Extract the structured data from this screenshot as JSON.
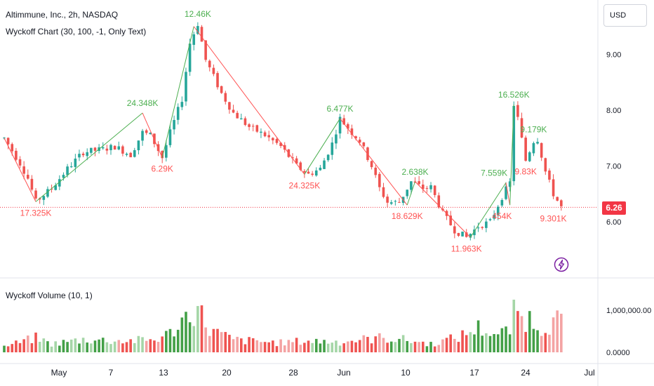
{
  "header": {
    "title": "Altimmune, Inc., 2h, NASDAQ",
    "indicator": "Wyckoff Chart (30, 100, -1, Only Text)",
    "volume_indicator": "Wyckoff Volume (10, 1)"
  },
  "currency_button": "USD",
  "last_price": "6.26",
  "colors": {
    "up": "#26a69a",
    "up_bar": "#43a047",
    "down": "#ef5350",
    "last_price_bg": "#f23645",
    "wave_up": "#4caf50",
    "wave_down": "#ff5252"
  },
  "icons": {
    "alert": "lightning-bolt-icon"
  },
  "chart_data": [
    {
      "type": "candlestick",
      "title": "Altimmune, Inc., 2h, NASDAQ",
      "y_ticks": [
        "9.00",
        "8.00",
        "7.00",
        "6.00"
      ],
      "x_ticks": [
        "May",
        "7",
        "13",
        "20",
        "28",
        "Jun",
        "10",
        "17",
        "24",
        "Jul"
      ],
      "ylim": [
        5.1,
        9.9
      ],
      "last_price": 6.26,
      "price_path": [
        {
          "t": 0,
          "v": 7.5
        },
        {
          "t": 4,
          "v": 7.05
        },
        {
          "t": 6,
          "v": 6.78
        },
        {
          "t": 8,
          "v": 6.36
        },
        {
          "t": 12,
          "v": 6.6
        },
        {
          "t": 16,
          "v": 6.95
        },
        {
          "t": 20,
          "v": 7.25
        },
        {
          "t": 25,
          "v": 7.3
        },
        {
          "t": 28,
          "v": 7.35
        },
        {
          "t": 32,
          "v": 7.2
        },
        {
          "t": 35,
          "v": 7.6
        },
        {
          "t": 37,
          "v": 7.55
        },
        {
          "t": 40,
          "v": 7.15
        },
        {
          "t": 42,
          "v": 7.6
        },
        {
          "t": 45,
          "v": 8.2
        },
        {
          "t": 47,
          "v": 9.2
        },
        {
          "t": 49,
          "v": 9.55
        },
        {
          "t": 51,
          "v": 8.9
        },
        {
          "t": 55,
          "v": 8.3
        },
        {
          "t": 58,
          "v": 7.95
        },
        {
          "t": 62,
          "v": 7.7
        },
        {
          "t": 66,
          "v": 7.55
        },
        {
          "t": 70,
          "v": 7.35
        },
        {
          "t": 74,
          "v": 7.0
        },
        {
          "t": 77,
          "v": 6.85
        },
        {
          "t": 80,
          "v": 6.95
        },
        {
          "t": 83,
          "v": 7.4
        },
        {
          "t": 85,
          "v": 7.85
        },
        {
          "t": 88,
          "v": 7.6
        },
        {
          "t": 90,
          "v": 7.45
        },
        {
          "t": 93,
          "v": 7.0
        },
        {
          "t": 95,
          "v": 6.6
        },
        {
          "t": 97,
          "v": 6.35
        },
        {
          "t": 100,
          "v": 6.35
        },
        {
          "t": 103,
          "v": 6.72
        },
        {
          "t": 106,
          "v": 6.6
        },
        {
          "t": 108,
          "v": 6.62
        },
        {
          "t": 111,
          "v": 6.15
        },
        {
          "t": 114,
          "v": 5.85
        },
        {
          "t": 117,
          "v": 5.72
        },
        {
          "t": 120,
          "v": 5.92
        },
        {
          "t": 123,
          "v": 6.0
        },
        {
          "t": 126,
          "v": 6.45
        },
        {
          "t": 128,
          "v": 6.7
        },
        {
          "t": 129,
          "v": 8.1
        },
        {
          "t": 130,
          "v": 7.85
        },
        {
          "t": 132,
          "v": 7.1
        },
        {
          "t": 134,
          "v": 7.45
        },
        {
          "t": 135,
          "v": 7.48
        },
        {
          "t": 137,
          "v": 6.9
        },
        {
          "t": 139,
          "v": 6.5
        },
        {
          "t": 141,
          "v": 6.26
        }
      ],
      "waves": [
        {
          "from": [
            0,
            7.5
          ],
          "to": [
            8,
            6.36
          ],
          "dir": "down"
        },
        {
          "from": [
            8,
            6.36
          ],
          "to": [
            35,
            7.95
          ],
          "dir": "up"
        },
        {
          "from": [
            35,
            7.95
          ],
          "to": [
            40,
            7.15
          ],
          "dir": "down"
        },
        {
          "from": [
            40,
            7.15
          ],
          "to": [
            48,
            9.5
          ],
          "dir": "up"
        },
        {
          "from": [
            48,
            9.5
          ],
          "to": [
            76,
            6.85
          ],
          "dir": "down"
        },
        {
          "from": [
            76,
            6.85
          ],
          "to": [
            85,
            7.85
          ],
          "dir": "up"
        },
        {
          "from": [
            85,
            7.85
          ],
          "to": [
            102,
            6.3
          ],
          "dir": "down"
        },
        {
          "from": [
            102,
            6.3
          ],
          "to": [
            104,
            6.72
          ],
          "dir": "up"
        },
        {
          "from": [
            104,
            6.72
          ],
          "to": [
            118,
            5.72
          ],
          "dir": "down"
        },
        {
          "from": [
            118,
            5.72
          ],
          "to": [
            127,
            6.7
          ],
          "dir": "up"
        },
        {
          "from": [
            127,
            6.7
          ],
          "to": [
            128,
            6.3
          ],
          "dir": "down"
        },
        {
          "from": [
            128,
            6.3
          ],
          "to": [
            129,
            8.1
          ],
          "dir": "up"
        }
      ],
      "annotations": [
        {
          "text": "17.325K",
          "t": 8,
          "v": 6.36,
          "pos": "below",
          "color": "down"
        },
        {
          "text": "24.348K",
          "t": 35,
          "v": 7.95,
          "pos": "above",
          "color": "up"
        },
        {
          "text": "6.29K",
          "t": 40,
          "v": 7.15,
          "pos": "below",
          "color": "down"
        },
        {
          "text": "12.46K",
          "t": 49,
          "v": 9.55,
          "pos": "above",
          "color": "up"
        },
        {
          "text": "24.325K",
          "t": 76,
          "v": 6.85,
          "pos": "below",
          "color": "down"
        },
        {
          "text": "6.477K",
          "t": 85,
          "v": 7.85,
          "pos": "above",
          "color": "up"
        },
        {
          "text": "2.638K",
          "t": 104,
          "v": 6.72,
          "pos": "above",
          "color": "up"
        },
        {
          "text": "18.629K",
          "t": 102,
          "v": 6.3,
          "pos": "below",
          "color": "down"
        },
        {
          "text": "11.963K",
          "t": 117,
          "v": 5.72,
          "pos": "below",
          "color": "down"
        },
        {
          "text": "7.559K",
          "t": 124,
          "v": 6.7,
          "pos": "above",
          "color": "up"
        },
        {
          "text": "454K",
          "t": 126,
          "v": 6.3,
          "pos": "below",
          "color": "down"
        },
        {
          "text": "16.526K",
          "t": 129,
          "v": 8.1,
          "pos": "above",
          "color": "up"
        },
        {
          "text": "9.179K",
          "t": 134,
          "v": 7.48,
          "pos": "above",
          "color": "up"
        },
        {
          "text": "9.83K",
          "t": 132,
          "v": 7.1,
          "pos": "below",
          "color": "down"
        },
        {
          "text": "9.301K",
          "t": 139,
          "v": 6.26,
          "pos": "below",
          "color": "down"
        }
      ]
    },
    {
      "type": "bar",
      "title": "Wyckoff Volume (10, 1)",
      "y_ticks": [
        "1,000,000.00",
        "0.0000"
      ],
      "ylim": [
        0,
        1250000
      ],
      "seed": 7,
      "volume_profile": [
        {
          "t": 0,
          "v": 150000
        },
        {
          "t": 8,
          "v": 380000
        },
        {
          "t": 12,
          "v": 220000
        },
        {
          "t": 20,
          "v": 340000
        },
        {
          "t": 30,
          "v": 300000
        },
        {
          "t": 38,
          "v": 330000
        },
        {
          "t": 42,
          "v": 500000
        },
        {
          "t": 47,
          "v": 1050000
        },
        {
          "t": 49,
          "v": 1150000
        },
        {
          "t": 52,
          "v": 600000
        },
        {
          "t": 58,
          "v": 330000
        },
        {
          "t": 70,
          "v": 250000
        },
        {
          "t": 76,
          "v": 300000
        },
        {
          "t": 85,
          "v": 280000
        },
        {
          "t": 95,
          "v": 380000
        },
        {
          "t": 100,
          "v": 350000
        },
        {
          "t": 108,
          "v": 220000
        },
        {
          "t": 115,
          "v": 400000
        },
        {
          "t": 120,
          "v": 650000
        },
        {
          "t": 125,
          "v": 450000
        },
        {
          "t": 128,
          "v": 600000
        },
        {
          "t": 129,
          "v": 1400000
        },
        {
          "t": 131,
          "v": 850000
        },
        {
          "t": 133,
          "v": 900000
        },
        {
          "t": 136,
          "v": 650000
        },
        {
          "t": 141,
          "v": 900000
        }
      ]
    }
  ]
}
